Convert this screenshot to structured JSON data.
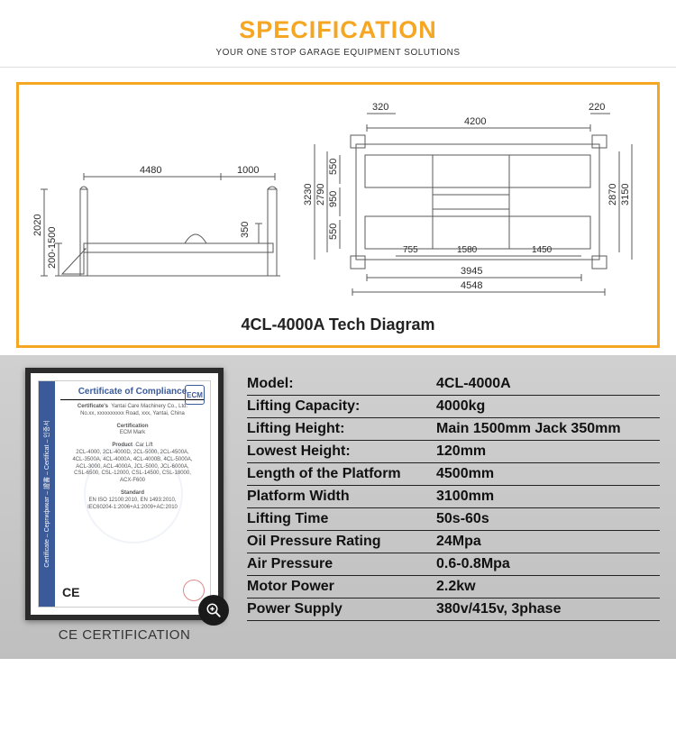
{
  "header": {
    "title": "SPECIFICATION",
    "subtitle": "YOUR ONE STOP GARAGE EQUIPMENT SOLUTIONS",
    "title_color": "#f5a623"
  },
  "diagram": {
    "border_color": "#f5a623",
    "title": "4CL-4000A Tech Diagram",
    "stroke": "#5a5a5a",
    "side": {
      "dims": {
        "d4480": "4480",
        "d1000": "1000",
        "d350": "350",
        "d2020": "2020",
        "d200_1500": "200-1500"
      }
    },
    "top": {
      "dims": {
        "d320": "320",
        "d4200": "4200",
        "d220": "220",
        "d3230": "3230",
        "d2790": "2790",
        "d950": "950",
        "d550a": "550",
        "d550b": "550",
        "d2870": "2870",
        "d3150": "3150",
        "d755": "755",
        "d1580": "1580",
        "d1450": "1450",
        "d3945": "3945",
        "d4548": "4548"
      }
    }
  },
  "certificate": {
    "heading": "Certificate of Compliance",
    "logo": "ECM",
    "side_label": "Certificate – Сертификат – 證書 – Certificat – 인증서",
    "lines": {
      "l1a": "Certificate's",
      "l1b": "Yantai Care Machinery Co., Ltd.",
      "l1c": "No.xx, xxxxxxxxxx Road, xxx, Yantai, China",
      "l2a": "Certification",
      "l2b": "ECM Mark",
      "l3a": "Product",
      "l3b": "Car Lift",
      "l3c": "2CL-4000, 2CL-4000D, 2CL-5000, 2CL-4500A,",
      "l3d": "4CL-3500A, 4CL-4000A, 4CL-4000B, 4CL-5000A,",
      "l3e": "ACL-3000, ACL-4000A, JCL-5000, JCL-6000A,",
      "l3f": "CSL-6500, CSL-12000, CSL-14500, CSL-18000,",
      "l3g": "ACX-F600",
      "l4a": "Standard",
      "l4b": "EN ISO 12100:2010, EN 1493:2010,",
      "l4c": "IEC60204-1:2006+A1:2009+AC:2010"
    },
    "ce_mark": "CE",
    "caption": "CE CERTIFICATION"
  },
  "specs": {
    "rows": [
      {
        "label": "Model:",
        "value": "4CL-4000A"
      },
      {
        "label": "Lifting Capacity:",
        "value": "4000kg"
      },
      {
        "label": "Lifting Height:",
        "value": "Main 1500mm  Jack 350mm"
      },
      {
        "label": "Lowest Height:",
        "value": "120mm"
      },
      {
        "label": "Length of the Platform",
        "value": "4500mm"
      },
      {
        "label": "Platform Width",
        "value": "3100mm"
      },
      {
        "label": "Lifting Time",
        "value": "50s-60s"
      },
      {
        "label": "Oil Pressure Rating",
        "value": "24Mpa"
      },
      {
        "label": "Air Pressure",
        "value": " 0.6-0.8Mpa"
      },
      {
        "label": "Motor Power",
        "value": "2.2kw"
      },
      {
        "label": "Power Supply",
        "value": "380v/415v, 3phase"
      }
    ]
  },
  "colors": {
    "accent": "#f5a623",
    "spec_bg_top": "#d0d0d0",
    "spec_bg_bot": "#bfbfbf",
    "cert_blue": "#3a5a9a"
  }
}
